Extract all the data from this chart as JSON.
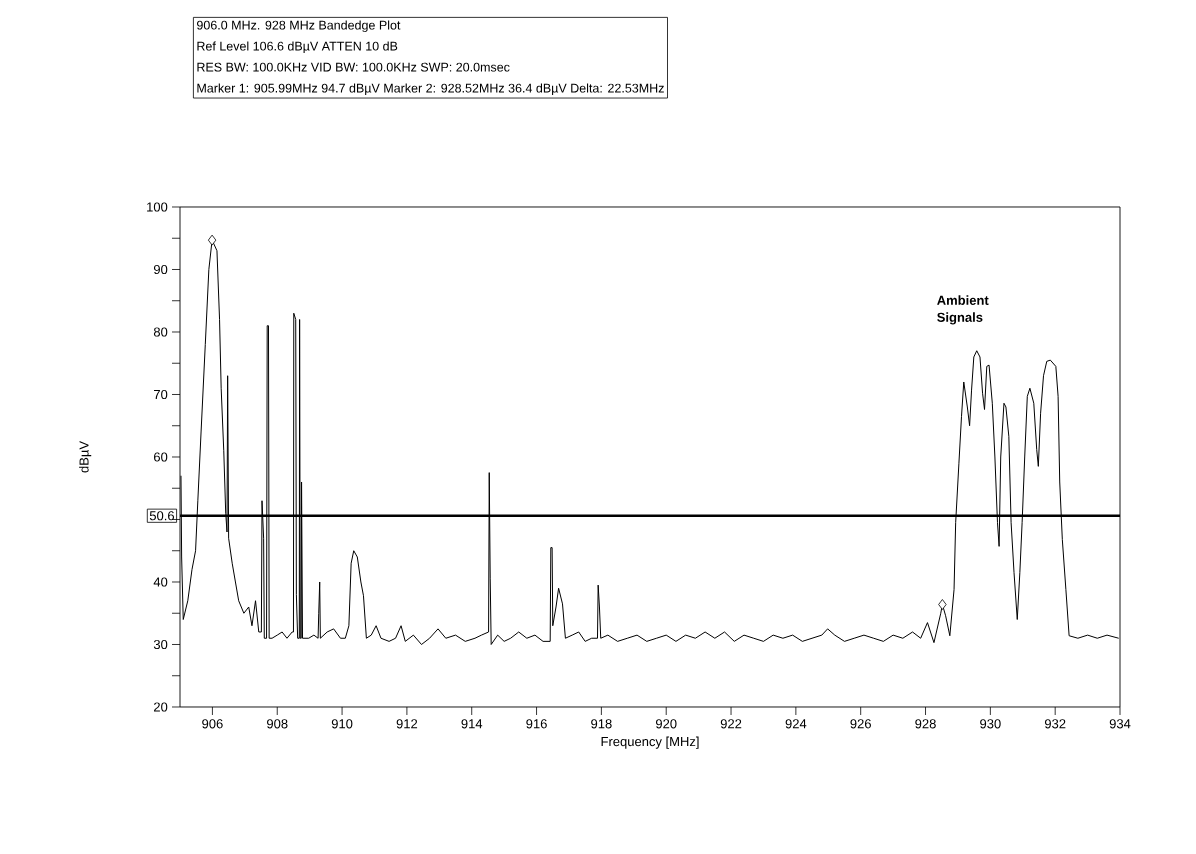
{
  "chart_data": {
    "type": "line",
    "title": "906.0 MHz. 928 MHz Bandedge Plot",
    "xlabel": "Frequency [MHz]",
    "ylabel": "dBµV",
    "annotations": [
      "Ref Level 106.6 dBµV    ATTEN 10 dB",
      "RES BW: 100.0KHz  VID BW: 100.0KHz  SWP: 20.0msec",
      "Marker 1: 905.99MHz  94.7 dBµV    Marker 2: 928.52MHz  36.4 dBµV Delta: 22.53MHz",
      {
        "text": "Ambient Signals",
        "x": 929.58,
        "y": 77
      }
    ],
    "xlim": [
      905,
      934
    ],
    "ylim": [
      20,
      100
    ],
    "xticks": [
      906,
      908,
      910,
      912,
      914,
      916,
      918,
      920,
      922,
      924,
      926,
      928,
      930,
      932,
      934
    ],
    "yticks": [
      20,
      {
        "value": 25,
        "label": null
      },
      30,
      {
        "value": 35,
        "label": null
      },
      40,
      {
        "value": 45,
        "label": null
      },
      {
        "value": 50,
        "label": null
      },
      {
        "value": 55,
        "label": null
      },
      60,
      {
        "value": 65,
        "label": null
      },
      70,
      {
        "value": 75,
        "label": null
      },
      80,
      {
        "value": 85,
        "label": null
      },
      90,
      {
        "value": 95,
        "label": null
      },
      100
    ],
    "ref_lines": [
      {
        "axis": "y",
        "value": 50.6,
        "label": "50.6",
        "color": "#000000"
      }
    ],
    "series": [
      {
        "color": "#000000",
        "x": [
          905.03,
          905.05,
          905.1,
          905.24,
          905.37,
          905.48,
          905.55,
          905.65,
          905.78,
          905.89,
          905.99,
          906.14,
          906.22,
          906.27,
          906.35,
          906.41,
          906.45,
          906.47,
          906.5,
          906.61,
          906.71,
          906.81,
          906.97,
          907.12,
          907.22,
          907.33,
          907.43,
          907.51,
          907.53,
          907.58,
          907.6,
          907.67,
          907.69,
          907.73,
          907.75,
          907.84,
          908.0,
          908.15,
          908.3,
          908.46,
          908.5,
          908.51,
          908.57,
          908.59,
          908.63,
          908.68,
          908.69,
          908.71,
          908.74,
          908.75,
          908.78,
          908.97,
          909.13,
          909.26,
          909.28,
          909.31,
          909.33,
          909.54,
          909.74,
          909.95,
          910.1,
          910.21,
          910.28,
          910.36,
          910.47,
          910.58,
          910.66,
          910.75,
          910.9,
          911.05,
          911.2,
          911.45,
          911.65,
          911.82,
          911.95,
          912.2,
          912.45,
          912.7,
          912.96,
          913.2,
          913.5,
          913.8,
          914.1,
          914.3,
          914.52,
          914.54,
          914.57,
          914.6,
          914.8,
          915.0,
          915.2,
          915.45,
          915.7,
          915.95,
          916.2,
          916.42,
          916.44,
          916.48,
          916.5,
          916.6,
          916.68,
          916.8,
          916.89,
          917.1,
          917.3,
          917.5,
          917.7,
          917.88,
          917.9,
          917.94,
          917.98,
          918.2,
          918.5,
          918.8,
          919.1,
          919.4,
          919.7,
          920.0,
          920.3,
          920.6,
          920.9,
          921.2,
          921.5,
          921.8,
          922.1,
          922.4,
          922.7,
          923.0,
          923.3,
          923.6,
          923.9,
          924.2,
          924.5,
          924.8,
          924.98,
          925.2,
          925.5,
          925.8,
          926.1,
          926.4,
          926.7,
          927.0,
          927.3,
          927.6,
          927.85,
          928.06,
          928.26,
          928.47,
          928.52,
          928.62,
          928.75,
          928.88,
          928.93,
          929.03,
          929.11,
          929.18,
          929.29,
          929.36,
          929.42,
          929.49,
          929.58,
          929.68,
          929.76,
          929.82,
          929.89,
          929.96,
          930.06,
          930.14,
          930.22,
          930.27,
          930.32,
          930.42,
          930.48,
          930.57,
          930.64,
          930.73,
          930.83,
          930.91,
          930.98,
          931.06,
          931.14,
          931.22,
          931.34,
          931.43,
          931.48,
          931.55,
          931.64,
          931.74,
          931.85,
          932.02,
          932.09,
          932.14,
          932.22,
          932.33,
          932.43,
          932.7,
          933.0,
          933.3,
          933.6,
          933.96
        ],
        "values": [
          57,
          44,
          34,
          37,
          42,
          45,
          53,
          64,
          78,
          90,
          94.7,
          93,
          82,
          71,
          61,
          51,
          48,
          73,
          47,
          43,
          40,
          37,
          35,
          36,
          33,
          37,
          32,
          32,
          53,
          47,
          31,
          31,
          81,
          81,
          31,
          31,
          31.5,
          32,
          31,
          32,
          32,
          83,
          82,
          38,
          31,
          31,
          82,
          31,
          31,
          56,
          31,
          31,
          31.5,
          31,
          35,
          40,
          31,
          32,
          32.5,
          31,
          31,
          33,
          43,
          45,
          44,
          40,
          37.8,
          31,
          31.5,
          33,
          31,
          30.5,
          31,
          33,
          30.5,
          31.5,
          30,
          31,
          32.5,
          31,
          31.5,
          30.5,
          31,
          31.5,
          32,
          57.5,
          40.5,
          30,
          31.5,
          30.5,
          31,
          32,
          31,
          31.5,
          30.5,
          30.5,
          45.5,
          45.5,
          33,
          36,
          39,
          36.5,
          31,
          31.5,
          32,
          30.5,
          31,
          31,
          39.5,
          36,
          31,
          31.5,
          30.5,
          31,
          31.5,
          30.5,
          31,
          31.5,
          30.5,
          31.5,
          31,
          32,
          31,
          32,
          30.5,
          31.5,
          31,
          30.5,
          31.5,
          31,
          31.5,
          30.5,
          31,
          31.5,
          32.5,
          31.5,
          30.5,
          31,
          31.5,
          31,
          30.5,
          31.5,
          31,
          32,
          31,
          33.5,
          30.3,
          35,
          36.4,
          34.6,
          31.4,
          38.8,
          49.5,
          59,
          66.5,
          72,
          68,
          65,
          70.7,
          76,
          77,
          76,
          70.2,
          67.6,
          74.5,
          74.7,
          68.6,
          60,
          49.5,
          45.7,
          60,
          68.6,
          68,
          63.3,
          49.5,
          41.5,
          34,
          41.5,
          49.5,
          60,
          69.7,
          71,
          68.6,
          61.2,
          58.5,
          67,
          73,
          75.3,
          75.5,
          74.5,
          69.7,
          56,
          46.8,
          38.8,
          31.4,
          31,
          31.5,
          31,
          31.5,
          31
        ]
      },
      {
        "type": "scatter",
        "color": "#000000",
        "marker": "diamond",
        "x": [
          905.99,
          928.52
        ],
        "values": [
          94.7,
          36.4
        ]
      }
    ]
  }
}
